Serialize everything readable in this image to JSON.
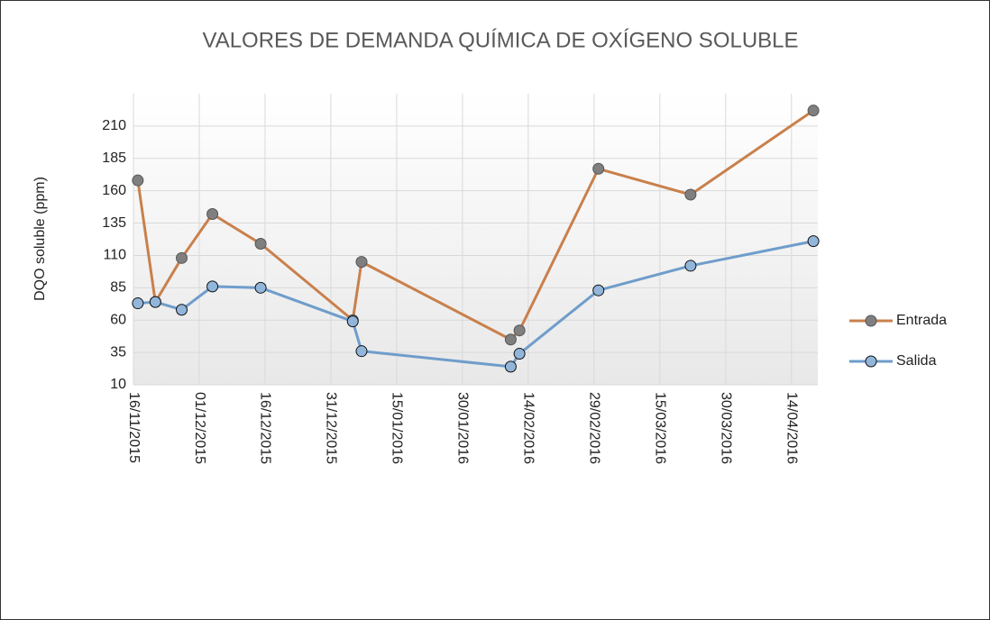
{
  "chart_data": {
    "type": "line",
    "title": "VALORES DE DEMANDA QUÍMICA DE OXÍGENO  SOLUBLE",
    "y_label": "DQO soluble (ppm)",
    "x": [
      "2015-11-17",
      "2015-11-21",
      "2015-11-27",
      "2015-12-04",
      "2015-12-15",
      "2016-01-05",
      "2016-01-07",
      "2016-02-10",
      "2016-02-12",
      "2016-03-01",
      "2016-03-22",
      "2016-04-19"
    ],
    "series": [
      {
        "name": "Entrada",
        "color": "#c9804c",
        "marker_color": "#7f7f7f",
        "values": [
          168,
          74,
          108,
          142,
          119,
          60,
          105,
          45,
          52,
          177,
          157,
          222
        ]
      },
      {
        "name": "Salida",
        "color": "#6f9dcb",
        "marker_color": "#92b5da",
        "values": [
          73,
          74,
          68,
          86,
          85,
          59,
          36,
          24,
          34,
          83,
          102,
          121
        ]
      }
    ],
    "xlim": [
      "2015-11-16",
      "2016-04-20"
    ],
    "xticks": [
      {
        "value": "2015-11-16",
        "label": "16/11/2015"
      },
      {
        "value": "2015-12-01",
        "label": "01/12/2015"
      },
      {
        "value": "2015-12-16",
        "label": "16/12/2015"
      },
      {
        "value": "2015-12-31",
        "label": "31/12/2015"
      },
      {
        "value": "2016-01-15",
        "label": "15/01/2016"
      },
      {
        "value": "2016-01-30",
        "label": "30/01/2016"
      },
      {
        "value": "2016-02-14",
        "label": "14/02/2016"
      },
      {
        "value": "2016-02-29",
        "label": "29/02/2016"
      },
      {
        "value": "2016-03-15",
        "label": "15/03/2016"
      },
      {
        "value": "2016-03-30",
        "label": "30/03/2016"
      },
      {
        "value": "2016-04-14",
        "label": "14/04/2016"
      }
    ],
    "ylim": [
      10,
      235
    ],
    "yticks": [
      10,
      35,
      60,
      85,
      110,
      135,
      160,
      185,
      210
    ],
    "grid": true,
    "legend": "right"
  }
}
